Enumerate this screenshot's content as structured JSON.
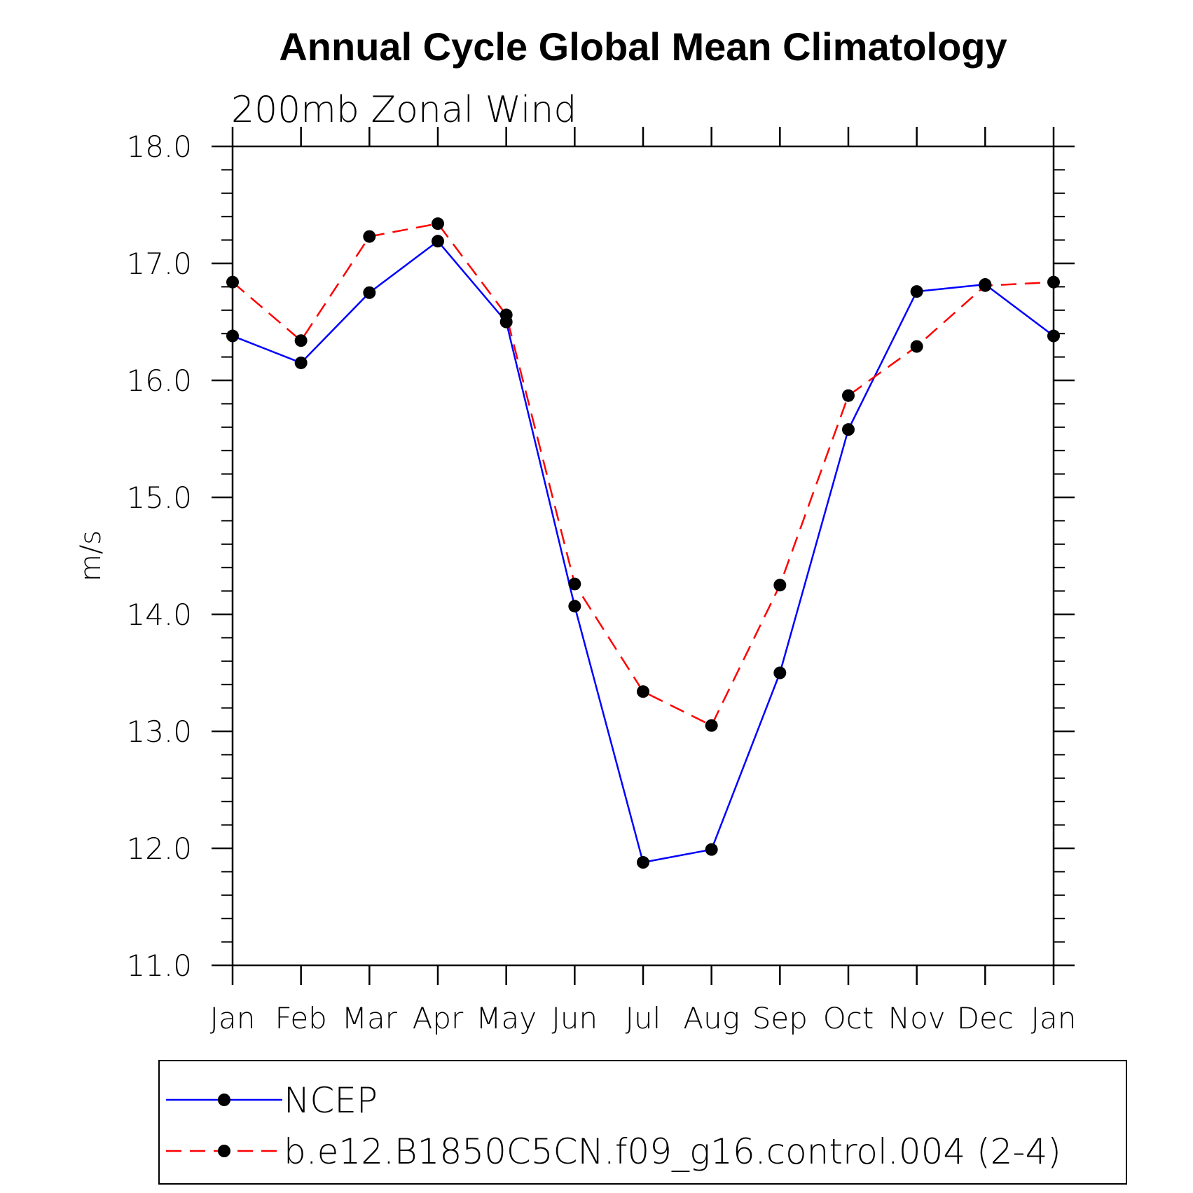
{
  "chart_data": {
    "type": "line",
    "title": "Annual Cycle Global Mean Climatology",
    "subtitle": "200mb  Zonal  Wind",
    "ylabel": "m/s",
    "xlabel": "",
    "categories": [
      "Jan",
      "Feb",
      "Mar",
      "Apr",
      "May",
      "Jun",
      "Jul",
      "Aug",
      "Sep",
      "Oct",
      "Nov",
      "Dec",
      "Jan"
    ],
    "ylim": [
      11.0,
      18.0
    ],
    "yticks": [
      "11.0",
      "12.0",
      "13.0",
      "14.0",
      "15.0",
      "16.0",
      "17.0",
      "18.0"
    ],
    "yminor_step": 0.2,
    "grid": false,
    "legend_position": "bottom",
    "series": [
      {
        "name": "NCEP",
        "color": "#0000ff",
        "dash": "solid",
        "marker": "filled-circle",
        "values": [
          16.38,
          16.15,
          16.75,
          17.19,
          16.5,
          14.07,
          11.88,
          11.99,
          13.5,
          15.58,
          16.76,
          16.82,
          16.38
        ]
      },
      {
        "name": "b.e12.B1850C5CN.f09_g16.control.004 (2-4)",
        "color": "#ff0000",
        "dash": "dashed",
        "marker": "filled-circle",
        "values": [
          16.84,
          16.34,
          17.23,
          17.34,
          16.56,
          14.26,
          13.34,
          13.05,
          14.25,
          15.87,
          16.29,
          16.81,
          16.84
        ]
      }
    ]
  }
}
